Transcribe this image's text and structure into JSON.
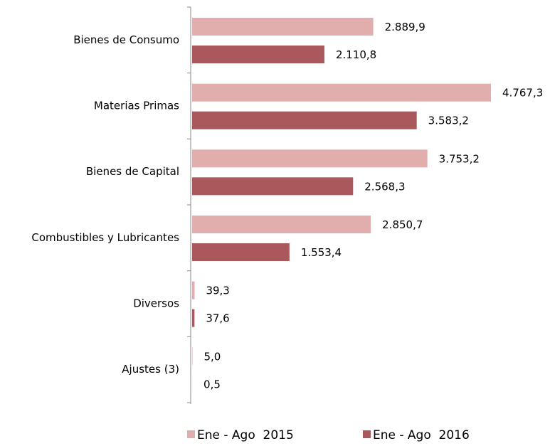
{
  "chart_data": {
    "type": "bar",
    "orientation": "horizontal",
    "categories": [
      "Bienes de Consumo",
      "Materias Primas",
      "Bienes de Capital",
      "Combustibles y Lubricantes",
      "Diversos",
      "Ajustes (3)"
    ],
    "series": [
      {
        "name": "Ene - Ago  2015",
        "color": "#e2adad",
        "label_color": "#e39a9a",
        "values": [
          2889.9,
          4767.3,
          3753.2,
          2850.7,
          39.3,
          5.0
        ],
        "value_labels": [
          "2.889,9",
          "4.767,3",
          "3.753,2",
          "2.850,7",
          "39,3",
          "5,0"
        ]
      },
      {
        "name": "Ene - Ago  2016",
        "color": "#a9585c",
        "label_color": "#8b1f24",
        "values": [
          2110.8,
          3583.2,
          2568.3,
          1553.4,
          37.6,
          0.5
        ],
        "value_labels": [
          "2.110,8",
          "3.583,2",
          "2.568,3",
          "1.553,4",
          "37,6",
          "0,5"
        ]
      }
    ],
    "legend": "bottom"
  }
}
